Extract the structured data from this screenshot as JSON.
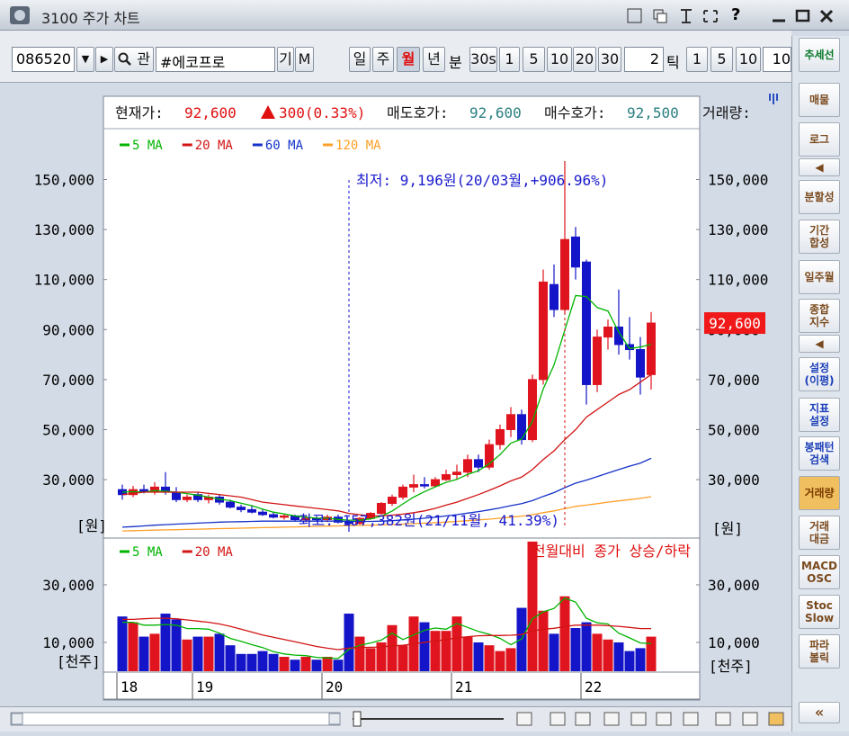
{
  "window": {
    "title": "3100 주가 차트",
    "help": "?"
  },
  "toolbar": {
    "code": "086520",
    "search": "관",
    "name": "#에코프로",
    "buttons": [
      "기",
      "M"
    ],
    "periods": [
      "일",
      "주",
      "월",
      "년"
    ],
    "minute_label": "분",
    "minutes": [
      "30s",
      "1",
      "5",
      "10",
      "20",
      "30"
    ],
    "tick_input": "2",
    "tick_label": "틱",
    "ticks": [
      "1",
      "5",
      "10"
    ],
    "last_input": "10"
  },
  "info": {
    "current_label": "현재가:",
    "current": "92,600",
    "change": "300(0.33%)",
    "ask_label": "매도호가:",
    "ask": "92,600",
    "bid_label": "매수호가:",
    "bid": "92,500",
    "volume_label": "거래량:"
  },
  "side_panel": [
    [
      "추세선"
    ],
    [
      "매물"
    ],
    [
      "로그"
    ],
    [
      "◀"
    ],
    [
      "분할성"
    ],
    [
      "기간",
      "합성"
    ],
    [
      "일주월"
    ],
    [
      "종합",
      "지수"
    ],
    [
      "◀"
    ],
    [
      "설정",
      "(이평)"
    ],
    [
      "지표",
      "설정"
    ],
    [
      "봉패턴",
      "검색"
    ],
    [
      "거래량"
    ],
    [
      "거래",
      "대금"
    ],
    [
      "MACD",
      "OSC"
    ],
    [
      "Stoc",
      "Slow"
    ],
    [
      "파라",
      "볼릭"
    ],
    [
      "«"
    ]
  ],
  "chart_data": {
    "type": "candlestick",
    "categories": [
      "18",
      null,
      null,
      null,
      null,
      null,
      null,
      "19",
      null,
      null,
      null,
      null,
      null,
      null,
      null,
      null,
      null,
      null,
      null,
      "20",
      null,
      null,
      null,
      null,
      null,
      null,
      null,
      null,
      null,
      null,
      null,
      "21",
      null,
      null,
      null,
      null,
      null,
      null,
      null,
      null,
      null,
      null,
      null,
      "22",
      null,
      null,
      null,
      null,
      null,
      null
    ],
    "open": [
      26000,
      24000,
      26000,
      25000,
      27000,
      25000,
      22000,
      24000,
      22000,
      23000,
      21000,
      19000,
      18000,
      17000,
      16000,
      15000,
      15500,
      14000,
      14500,
      14000,
      15000,
      13000,
      12500,
      14500,
      16500,
      20500,
      23000,
      27000,
      28000,
      27500,
      30000,
      32000,
      33000,
      38000,
      35000,
      44000,
      50000,
      56000,
      46000,
      70000,
      108000,
      98000,
      127000,
      117000,
      68000,
      87000,
      91000,
      84000,
      82000,
      72000
    ],
    "high": [
      28000,
      27500,
      28000,
      29000,
      33000,
      27000,
      24000,
      25000,
      24000,
      24000,
      22000,
      20000,
      19500,
      18000,
      17000,
      16500,
      16000,
      15500,
      15500,
      16000,
      16000,
      14000,
      15000,
      17000,
      21000,
      24000,
      28000,
      32000,
      31000,
      31000,
      34000,
      36000,
      40000,
      40000,
      46000,
      52000,
      59000,
      58000,
      72000,
      114000,
      116000,
      157382,
      131000,
      118000,
      90000,
      94000,
      106000,
      95000,
      87000,
      97000
    ],
    "low": [
      22000,
      23000,
      24500,
      24000,
      24000,
      21000,
      21000,
      21000,
      20500,
      20000,
      18500,
      17000,
      16500,
      15500,
      14500,
      14000,
      13500,
      13000,
      13500,
      13000,
      12500,
      9196,
      12000,
      14000,
      16000,
      19500,
      22000,
      25000,
      26500,
      27000,
      29500,
      30000,
      31000,
      33000,
      34000,
      42000,
      47000,
      44000,
      45000,
      68000,
      95000,
      96000,
      110000,
      60000,
      65000,
      82000,
      80000,
      78000,
      64000,
      66000
    ],
    "close": [
      24000,
      26000,
      25000,
      27000,
      25000,
      22000,
      23000,
      22000,
      23000,
      21000,
      19000,
      18000,
      17000,
      16000,
      15000,
      15500,
      14000,
      14500,
      14000,
      15000,
      13000,
      12500,
      14500,
      16500,
      20500,
      23000,
      27000,
      28000,
      27500,
      30000,
      32000,
      33000,
      38000,
      35000,
      44000,
      50000,
      56000,
      46000,
      70000,
      109000,
      98000,
      126000,
      115000,
      68000,
      87000,
      91000,
      84000,
      82000,
      71000,
      92600
    ],
    "up_color": "#e0141e",
    "down_color": "#1414c8",
    "ylim": [
      7000,
      169600
    ],
    "yticks": [
      {
        "value": 30000,
        "label": "30,000"
      },
      {
        "value": 50000,
        "label": "50,000"
      },
      {
        "value": 70000,
        "label": "70,000"
      },
      {
        "value": 90000,
        "label": "90,000"
      },
      {
        "value": 110000,
        "label": "110,000"
      },
      {
        "value": 130000,
        "label": "130,000"
      },
      {
        "value": 150000,
        "label": "150,000"
      }
    ],
    "unit_label": "[원]",
    "last_price_label": "92,600",
    "low_annotation": "최저: 9,196원(20/03월,+906.96%)",
    "high_annotation": "최고: 157,382원(21/11월, 41.39%)",
    "series": [
      {
        "name": "5 MA",
        "color": "#00b400",
        "values": [
          25000,
          25200,
          25000,
          25600,
          25400,
          25000,
          24400,
          23800,
          23000,
          22200,
          21600,
          20600,
          19600,
          18200,
          17000,
          16300,
          15500,
          15000,
          14600,
          14600,
          14100,
          13800,
          13800,
          14300,
          15400,
          17400,
          20300,
          23000,
          25200,
          27100,
          28900,
          30100,
          32100,
          33600,
          36400,
          40000,
          44600,
          46200,
          53200,
          66200,
          75800,
          89800,
          103600,
          103200,
          98800,
          97400,
          89000,
          82400,
          83000,
          84120
        ]
      },
      {
        "name": "20 MA",
        "color": "#d21414",
        "values": [
          24000,
          24500,
          25000,
          25000,
          25000,
          25000,
          25000,
          25000,
          24500,
          24000,
          23500,
          23000,
          22000,
          21000,
          20500,
          20000,
          19500,
          19000,
          18500,
          18000,
          17500,
          16500,
          16000,
          15500,
          15500,
          15800,
          16200,
          16800,
          17500,
          18500,
          19800,
          21000,
          22500,
          24000,
          25700,
          27500,
          29500,
          31000,
          34000,
          38000,
          41500,
          46000,
          50000,
          55000,
          58000,
          61000,
          64000,
          66000,
          69000,
          72000
        ]
      },
      {
        "name": "60 MA",
        "color": "#1432c8",
        "values": [
          11000,
          11200,
          11500,
          11800,
          12000,
          12200,
          12400,
          12600,
          12800,
          13000,
          13100,
          13200,
          13300,
          13400,
          13400,
          13400,
          13400,
          13400,
          13400,
          13400,
          13400,
          13300,
          13300,
          13300,
          13400,
          13600,
          13900,
          14200,
          14600,
          15000,
          15500,
          16000,
          16600,
          17200,
          17900,
          18700,
          19600,
          20400,
          21600,
          23300,
          24800,
          26800,
          28600,
          29800,
          31200,
          32600,
          34000,
          35400,
          36600,
          38500
        ]
      },
      {
        "name": "120 MA",
        "color": "#ffa028",
        "values": [
          9500,
          9600,
          9700,
          9800,
          9900,
          10000,
          10100,
          10200,
          10300,
          10400,
          10500,
          10600,
          10700,
          10800,
          10900,
          11000,
          11100,
          11200,
          11300,
          11400,
          11500,
          11600,
          11700,
          11800,
          11900,
          12000,
          12200,
          12400,
          12600,
          12800,
          13000,
          13300,
          13600,
          13900,
          14200,
          14600,
          15000,
          15400,
          16000,
          16800,
          17500,
          18400,
          19300,
          19800,
          20400,
          21000,
          21500,
          22000,
          22500,
          23200
        ]
      }
    ],
    "volume": {
      "type": "bar",
      "values": [
        19000,
        17000,
        12000,
        13000,
        20000,
        18000,
        11000,
        12000,
        12000,
        13000,
        9000,
        6000,
        6000,
        7000,
        6000,
        5000,
        4000,
        5000,
        4000,
        5000,
        4000,
        20000,
        12000,
        8000,
        10000,
        16000,
        9000,
        19000,
        17000,
        14000,
        14000,
        19000,
        12000,
        10000,
        9000,
        7000,
        8000,
        22000,
        45000,
        21000,
        13000,
        26000,
        15000,
        17000,
        13000,
        11000,
        10000,
        7000,
        8000,
        12000
      ],
      "ylim": [
        0,
        45600
      ],
      "yticks": [
        {
          "value": 10000,
          "label": "10,000"
        },
        {
          "value": 30000,
          "label": "30,000"
        }
      ],
      "unit_label": "[천주]",
      "note": "전월대비 종가 상승/하락",
      "series": [
        {
          "name": "5 MA",
          "color": "#00b400",
          "values": [
            17000,
            17000,
            16000,
            16000,
            16200,
            16000,
            14800,
            14800,
            14600,
            13200,
            11400,
            10400,
            9200,
            8200,
            6800,
            6000,
            5600,
            5400,
            4800,
            4600,
            4400,
            7600,
            9000,
            9800,
            10800,
            13200,
            11000,
            12600,
            14200,
            15000,
            14600,
            16600,
            15200,
            13800,
            12800,
            11400,
            9200,
            11200,
            18200,
            20600,
            21800,
            25400,
            24000,
            18400,
            16800,
            16400,
            13200,
            11600,
            9800,
            9600
          ]
        },
        {
          "name": "20 MA",
          "color": "#d21414",
          "values": [
            18000,
            18000,
            18200,
            18400,
            18400,
            18200,
            17800,
            17400,
            17000,
            16400,
            15600,
            14600,
            13600,
            12600,
            11800,
            11000,
            10200,
            9400,
            8600,
            8000,
            7500,
            8000,
            8200,
            8300,
            8400,
            8800,
            9000,
            9500,
            10000,
            10500,
            11000,
            11600,
            12000,
            12300,
            12400,
            12400,
            12500,
            12700,
            14000,
            14600,
            14900,
            15500,
            16000,
            16000,
            16000,
            15800,
            15600,
            15200,
            14800,
            14800
          ]
        }
      ]
    }
  }
}
